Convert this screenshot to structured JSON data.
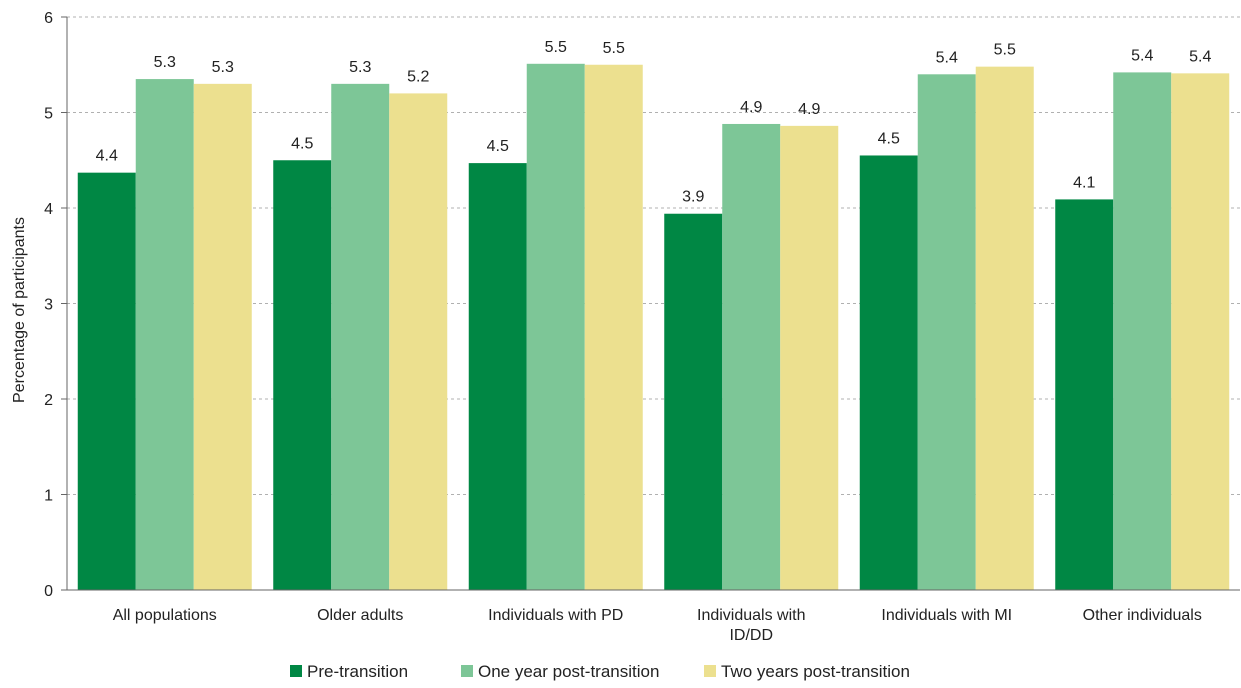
{
  "chart_data": {
    "type": "bar",
    "ylabel": "Percentage of participants",
    "ylim": [
      0,
      6
    ],
    "yticks": [
      0,
      1,
      2,
      3,
      4,
      5,
      6
    ],
    "grid": true,
    "legend_position": "bottom",
    "categories": [
      [
        "All populations"
      ],
      [
        "Older adults"
      ],
      [
        "Individuals with PD"
      ],
      [
        "Individuals with",
        "ID/DD"
      ],
      [
        "Individuals with MI"
      ],
      [
        "Other individuals"
      ]
    ],
    "series": [
      {
        "name": "Pre-transition",
        "color": "#008744",
        "values": [
          4.37,
          4.5,
          4.47,
          3.94,
          4.55,
          4.09
        ],
        "labels": [
          "4.4",
          "4.5",
          "4.5",
          "3.9",
          "4.5",
          "4.1"
        ]
      },
      {
        "name": "One year post-transition",
        "color": "#7dc697",
        "values": [
          5.35,
          5.3,
          5.51,
          4.88,
          5.4,
          5.42
        ],
        "labels": [
          "5.3",
          "5.3",
          "5.5",
          "4.9",
          "5.4",
          "5.4"
        ]
      },
      {
        "name": "Two years post-transition",
        "color": "#ece08f",
        "values": [
          5.3,
          5.2,
          5.5,
          4.86,
          5.48,
          5.41
        ],
        "labels": [
          "5.3",
          "5.2",
          "5.5",
          "4.9",
          "5.5",
          "5.4"
        ]
      }
    ]
  }
}
